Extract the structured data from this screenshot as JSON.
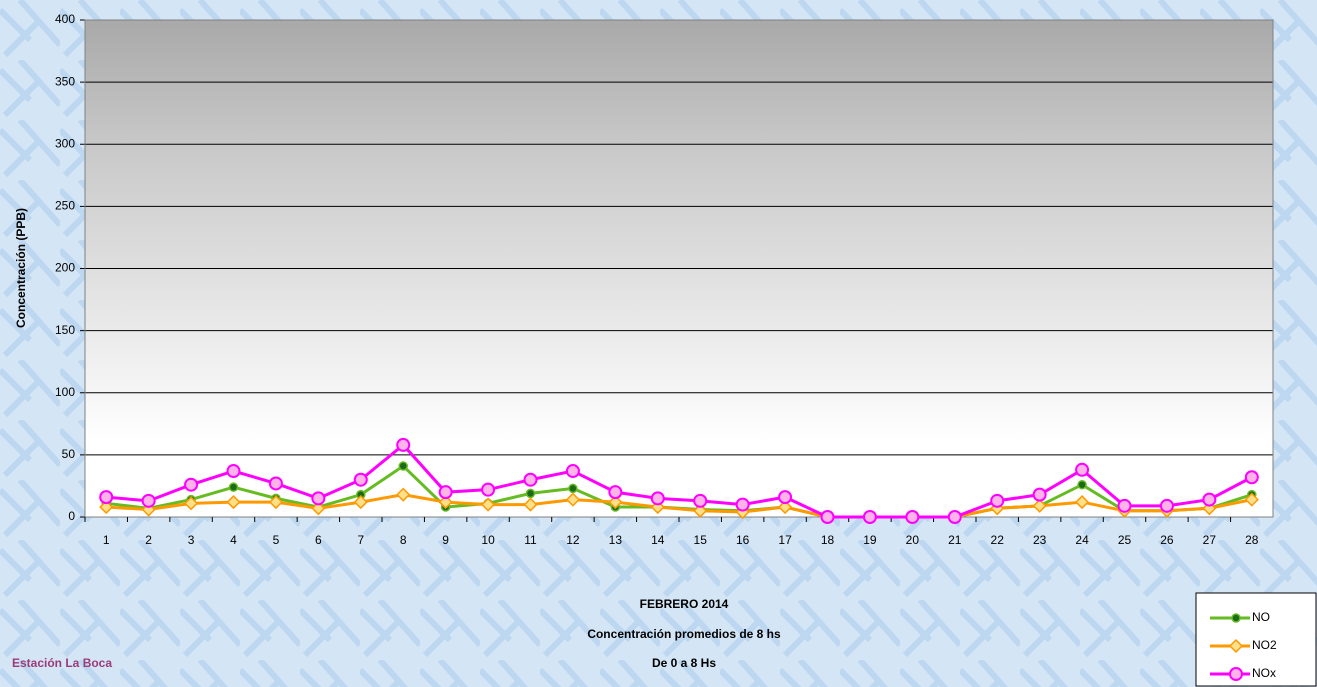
{
  "chart_data": {
    "type": "line",
    "title_lines": [
      "FEBRERO 2014",
      "Concentración promedios de 8 hs",
      "De 0 a 8 Hs"
    ],
    "station": "Estación La Boca",
    "y_label": "Concentración  (PPB)",
    "categories": [
      "1",
      "2",
      "3",
      "4",
      "5",
      "6",
      "7",
      "8",
      "9",
      "10",
      "11",
      "12",
      "13",
      "14",
      "15",
      "16",
      "17",
      "18",
      "19",
      "20",
      "21",
      "22",
      "23",
      "24",
      "25",
      "26",
      "27",
      "28"
    ],
    "series": [
      {
        "name": "NO",
        "color": "#66bb22",
        "marker": "dot",
        "values": [
          11,
          7,
          14,
          24,
          15,
          8,
          18,
          41,
          8,
          11,
          19,
          23,
          8,
          8,
          6,
          5,
          8,
          0,
          0,
          0,
          0,
          7,
          9,
          26,
          5,
          5,
          7,
          18
        ]
      },
      {
        "name": "NO2",
        "color": "#ff9900",
        "marker": "diamond",
        "values": [
          8,
          6,
          11,
          12,
          12,
          7,
          12,
          18,
          12,
          10,
          10,
          14,
          12,
          8,
          5,
          4,
          8,
          0,
          0,
          0,
          0,
          7,
          9,
          12,
          5,
          5,
          7,
          14
        ]
      },
      {
        "name": "NOx",
        "color": "#ff00ff",
        "marker": "circle",
        "values": [
          16,
          13,
          26,
          37,
          27,
          15,
          30,
          58,
          20,
          22,
          30,
          37,
          20,
          15,
          13,
          10,
          16,
          0,
          0,
          0,
          0,
          13,
          18,
          38,
          9,
          9,
          14,
          32
        ]
      }
    ],
    "ylim": [
      0,
      400
    ],
    "yticks": [
      0,
      50,
      100,
      150,
      200,
      250,
      300,
      350,
      400
    ],
    "grid": true
  }
}
